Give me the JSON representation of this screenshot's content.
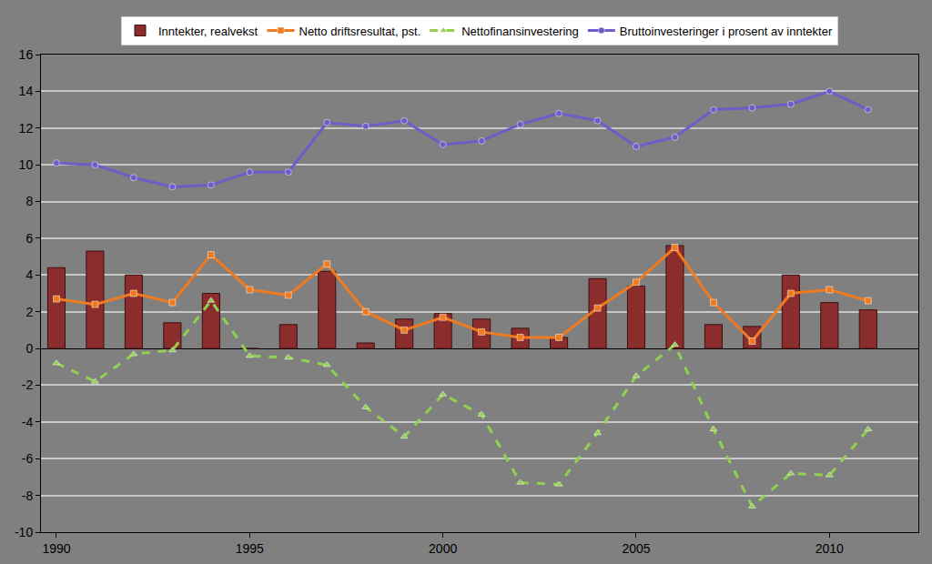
{
  "chart_data": {
    "type": "bar",
    "x": [
      1990,
      1991,
      1992,
      1993,
      1994,
      1995,
      1996,
      1997,
      1998,
      1999,
      2000,
      2001,
      2002,
      2003,
      2004,
      2005,
      2006,
      2007,
      2008,
      2009,
      2010,
      2011
    ],
    "series": [
      {
        "name": "Inntekter, realvekst",
        "type": "bar",
        "color": "#8b2d2d",
        "values": [
          4.4,
          5.3,
          4.0,
          1.4,
          3.0,
          0,
          1.3,
          4.2,
          0.3,
          1.6,
          1.9,
          1.6,
          1.1,
          0.6,
          3.8,
          3.4,
          5.6,
          1.3,
          1.2,
          4.0,
          2.5,
          2.1
        ]
      },
      {
        "name": "Netto driftsresultat, pst.",
        "type": "line",
        "color": "#f07a20",
        "marker": "square",
        "line_style": "solid",
        "values": [
          2.7,
          2.4,
          3.0,
          2.5,
          5.1,
          3.2,
          2.9,
          4.6,
          2.0,
          1.0,
          1.7,
          0.9,
          0.6,
          0.6,
          2.2,
          3.6,
          5.5,
          2.5,
          0.4,
          3.0,
          3.2,
          2.6
        ]
      },
      {
        "name": "Nettofinansinvestering",
        "type": "line",
        "color": "#92d050",
        "marker": "triangle-up",
        "line_style": "dash",
        "values": [
          -0.8,
          -1.8,
          -0.3,
          -0.1,
          2.6,
          -0.4,
          -0.5,
          -0.9,
          -3.2,
          -4.8,
          -2.5,
          -3.6,
          -7.3,
          -7.4,
          -4.6,
          -1.5,
          0.2,
          -4.4,
          -8.6,
          -6.8,
          -6.9,
          -4.4
        ]
      },
      {
        "name": "Bruttoinvesteringer i prosent av inntekter",
        "type": "line",
        "color": "#6b5fc7",
        "marker": "circle",
        "line_style": "solid",
        "values": [
          10.1,
          10.0,
          9.3,
          8.8,
          8.9,
          9.6,
          9.6,
          12.3,
          12.1,
          12.4,
          11.1,
          11.3,
          12.2,
          12.8,
          12.4,
          11.0,
          11.5,
          13.0,
          13.1,
          13.3,
          14.0,
          13.0
        ]
      }
    ],
    "xlim": [
      1989.6,
      2012.3
    ],
    "xticks": [
      1990,
      1995,
      2000,
      2005,
      2010
    ],
    "ylim": [
      -10,
      16
    ],
    "yticks": [
      -10,
      -8,
      -6,
      -4,
      -2,
      0,
      2,
      4,
      6,
      8,
      10,
      12,
      14,
      16
    ],
    "grid": true,
    "legend": "top"
  }
}
